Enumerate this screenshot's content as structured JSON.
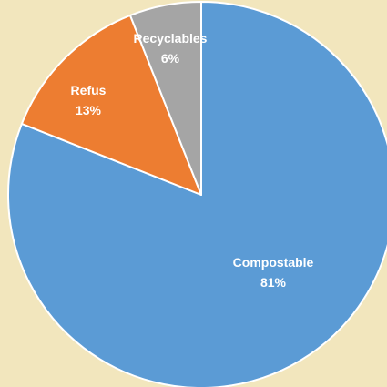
{
  "chart_data": {
    "type": "pie",
    "title": "",
    "categories": [
      "Compostable",
      "Refus",
      "Recyclables"
    ],
    "values": [
      81,
      13,
      6
    ],
    "labels": [
      "81%",
      "13%",
      "6%"
    ],
    "colors": [
      "#5b9bd5",
      "#ed7d31",
      "#a5a5a5"
    ],
    "start": "12 o'clock",
    "direction": "clockwise",
    "legend": "none",
    "background": "#f2e6bd"
  }
}
